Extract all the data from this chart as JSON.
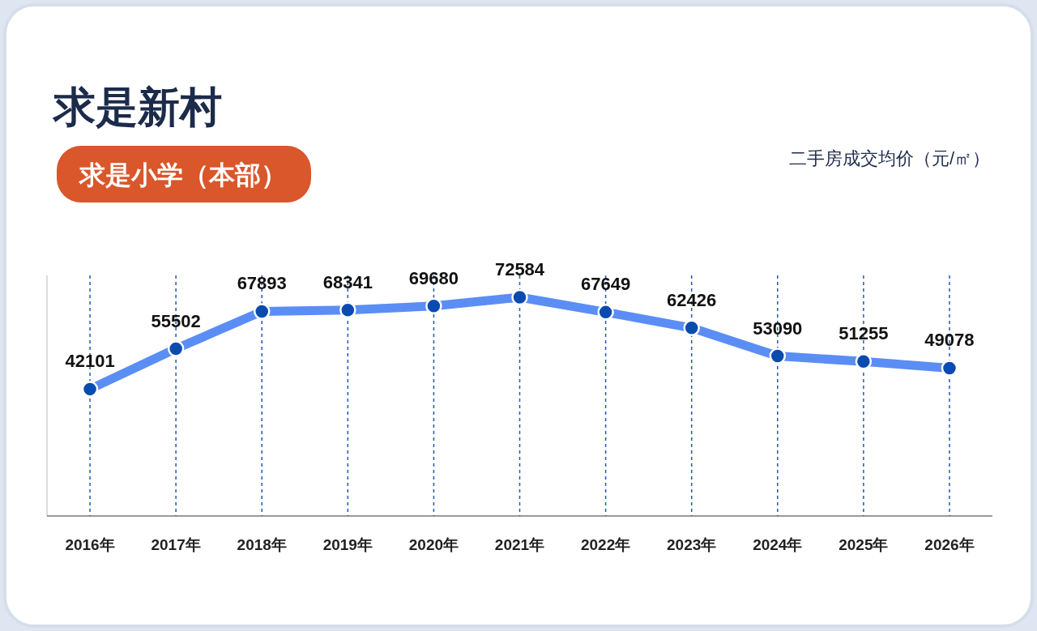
{
  "chart_data": {
    "type": "line",
    "title": "求是新村",
    "subtitle": "求是小学（本部）",
    "annotations": [
      "二手房成交均价（元/㎡）"
    ],
    "categories": [
      "2016年",
      "2017年",
      "2018年",
      "2019年",
      "2020年",
      "2021年",
      "2022年",
      "2023年",
      "2024年",
      "2025年",
      "2026年"
    ],
    "series": [
      {
        "color": "#5b8ef5",
        "values": [
          42101,
          55502,
          67893,
          68341,
          69680,
          72584,
          67649,
          62426,
          53090,
          51255,
          49078
        ]
      }
    ],
    "data_labels": true,
    "grid": "x",
    "marker": "circle",
    "line_style": "solid"
  }
}
